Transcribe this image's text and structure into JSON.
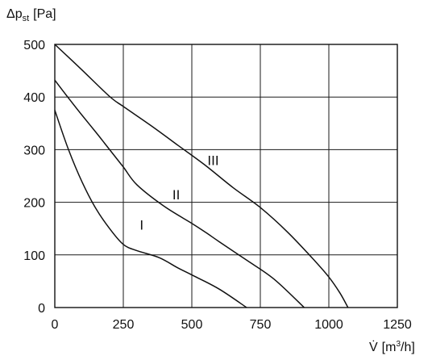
{
  "chart_data": {
    "type": "line",
    "ylabel": "Δp",
    "ylabel_sub": "st",
    "ylabel_unit": "[Pa]",
    "xlabel": "V̇",
    "xlabel_unit_pre": "[m",
    "xlabel_unit_sup": "3",
    "xlabel_unit_post": "/h]",
    "xlim": [
      0,
      1250
    ],
    "ylim": [
      0,
      500
    ],
    "xticks": [
      0,
      250,
      500,
      750,
      1000,
      1250
    ],
    "yticks": [
      0,
      100,
      200,
      300,
      400,
      500
    ],
    "grid": true,
    "series": [
      {
        "name": "I",
        "points": [
          [
            0,
            375
          ],
          [
            50,
            300
          ],
          [
            100,
            238
          ],
          [
            150,
            188
          ],
          [
            200,
            150
          ],
          [
            250,
            120
          ],
          [
            300,
            108
          ],
          [
            380,
            95
          ],
          [
            450,
            75
          ],
          [
            500,
            62
          ],
          [
            600,
            35
          ],
          [
            700,
            0
          ]
        ],
        "label_at": [
          317,
          157
        ]
      },
      {
        "name": "II",
        "points": [
          [
            0,
            432
          ],
          [
            50,
            398
          ],
          [
            100,
            365
          ],
          [
            150,
            333
          ],
          [
            200,
            300
          ],
          [
            250,
            267
          ],
          [
            300,
            233
          ],
          [
            400,
            192
          ],
          [
            500,
            160
          ],
          [
            550,
            143
          ],
          [
            600,
            125
          ],
          [
            700,
            90
          ],
          [
            800,
            54
          ],
          [
            910,
            0
          ]
        ],
        "label_at": [
          443,
          215
        ]
      },
      {
        "name": "III",
        "points": [
          [
            0,
            500
          ],
          [
            100,
            451
          ],
          [
            200,
            401
          ],
          [
            250,
            382
          ],
          [
            350,
            346
          ],
          [
            450,
            308
          ],
          [
            550,
            270
          ],
          [
            650,
            228
          ],
          [
            750,
            190
          ],
          [
            850,
            143
          ],
          [
            950,
            88
          ],
          [
            1000,
            58
          ],
          [
            1040,
            28
          ],
          [
            1070,
            0
          ]
        ],
        "label_at": [
          578,
          280
        ]
      }
    ]
  }
}
